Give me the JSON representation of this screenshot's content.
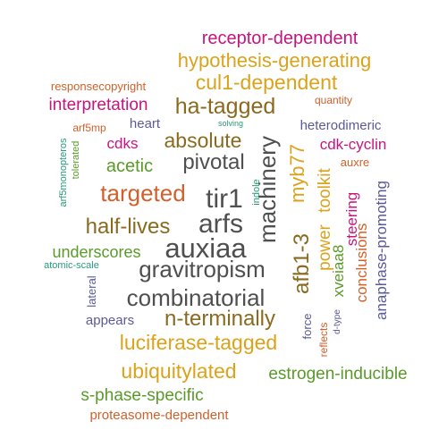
{
  "palette": {
    "magenta": "#c7157e",
    "gold": "#dba31c",
    "bronze": "#8a6a1e",
    "gray": "#4f4f4f",
    "slate": "#5a5a9a",
    "orange": "#d2602a",
    "green": "#5a9a2a",
    "teal": "#2a9a7a"
  },
  "words": [
    {
      "text": "receptor-dependent",
      "color": "#c7157e"
    },
    {
      "text": "hypothesis-generating",
      "color": "#dba31c"
    },
    {
      "text": "cul1-dependent",
      "color": "#dba31c"
    },
    {
      "text": "responsecopyright",
      "color": "#d2602a"
    },
    {
      "text": "quantity",
      "color": "#d2602a"
    },
    {
      "text": "interpretation",
      "color": "#c7157e"
    },
    {
      "text": "ha-tagged",
      "color": "#8a6a1e"
    },
    {
      "text": "arf5mp",
      "color": "#d2602a"
    },
    {
      "text": "heart",
      "color": "#5a5a9a"
    },
    {
      "text": "solving",
      "color": "#2a9a7a"
    },
    {
      "text": "heterodimeric",
      "color": "#5a5a9a"
    },
    {
      "text": "cdks",
      "color": "#c7157e"
    },
    {
      "text": "absolute",
      "color": "#8a6a1e"
    },
    {
      "text": "machinery",
      "color": "#4f4f4f"
    },
    {
      "text": "cdk-cyclin",
      "color": "#c7157e"
    },
    {
      "text": "arf5monopteros",
      "color": "#2a9a7a"
    },
    {
      "text": "tolerated",
      "color": "#5a9a2a"
    },
    {
      "text": "pivotal",
      "color": "#4f4f4f"
    },
    {
      "text": "acetic",
      "color": "#5a9a2a"
    },
    {
      "text": "myb77",
      "color": "#dba31c"
    },
    {
      "text": "auxre",
      "color": "#d2602a"
    },
    {
      "text": "toolkit",
      "color": "#dba31c"
    },
    {
      "text": "indole",
      "color": "#2a9a7a"
    },
    {
      "text": "targeted",
      "color": "#d2602a"
    },
    {
      "text": "tir1",
      "color": "#4f4f4f"
    },
    {
      "text": "steering",
      "color": "#c7157e"
    },
    {
      "text": "anaphase-promoting",
      "color": "#5a5a9a"
    },
    {
      "text": "half-lives",
      "color": "#8a6a1e"
    },
    {
      "text": "arfs",
      "color": "#4f4f4f"
    },
    {
      "text": "power",
      "color": "#dba31c"
    },
    {
      "text": "xveiaa8",
      "color": "#5a9a2a"
    },
    {
      "text": "conclusions",
      "color": "#d2602a"
    },
    {
      "text": "underscores",
      "color": "#5a9a2a"
    },
    {
      "text": "auxiaa",
      "color": "#4f4f4f"
    },
    {
      "text": "afb1-3",
      "color": "#8a6a1e"
    },
    {
      "text": "atomic-scale",
      "color": "#2a9a7a"
    },
    {
      "text": "gravitropism",
      "color": "#4f4f4f"
    },
    {
      "text": "lateral",
      "color": "#5a5a9a"
    },
    {
      "text": "combinatorial",
      "color": "#4f4f4f"
    },
    {
      "text": "force",
      "color": "#5a5a9a"
    },
    {
      "text": "appears",
      "color": "#5a5a9a"
    },
    {
      "text": "n-terminally",
      "color": "#8a6a1e"
    },
    {
      "text": "reflects",
      "color": "#d2602a"
    },
    {
      "text": "d-type",
      "color": "#5a5a9a"
    },
    {
      "text": "luciferase-tagged",
      "color": "#dba31c"
    },
    {
      "text": "ubiquitylated",
      "color": "#dba31c"
    },
    {
      "text": "estrogen-inducible",
      "color": "#5a9a2a"
    },
    {
      "text": "s-phase-specific",
      "color": "#5a9a2a"
    },
    {
      "text": "proteasome-dependent",
      "color": "#d2602a"
    }
  ]
}
